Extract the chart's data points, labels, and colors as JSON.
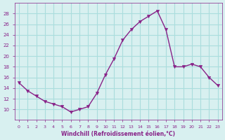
{
  "x": [
    0,
    1,
    2,
    3,
    4,
    5,
    6,
    7,
    8,
    9,
    10,
    11,
    12,
    13,
    14,
    15,
    16,
    17,
    18,
    19,
    20,
    21,
    22,
    23
  ],
  "y": [
    15,
    13.5,
    12.5,
    11.5,
    11,
    10.5,
    9.5,
    10,
    10.5,
    13,
    16.5,
    19.5,
    23,
    25,
    26.5,
    27.5,
    28.5,
    25,
    18,
    18,
    18.5,
    18,
    16,
    14.5
  ],
  "line_color": "#882288",
  "marker": "v",
  "marker_size": 3,
  "bg_color": "#d8f0f0",
  "grid_color": "#aadddd",
  "xlabel": "Windchill (Refroidissement éolien,°C)",
  "xlabel_color": "#882288",
  "tick_color": "#882288",
  "ylim": [
    8,
    30
  ],
  "yticks": [
    10,
    12,
    14,
    16,
    18,
    20,
    22,
    24,
    26,
    28
  ],
  "xlim": [
    -0.5,
    23.5
  ],
  "xticks": [
    0,
    1,
    2,
    3,
    4,
    5,
    6,
    7,
    8,
    9,
    10,
    11,
    12,
    13,
    14,
    15,
    16,
    17,
    18,
    19,
    20,
    21,
    22,
    23
  ]
}
